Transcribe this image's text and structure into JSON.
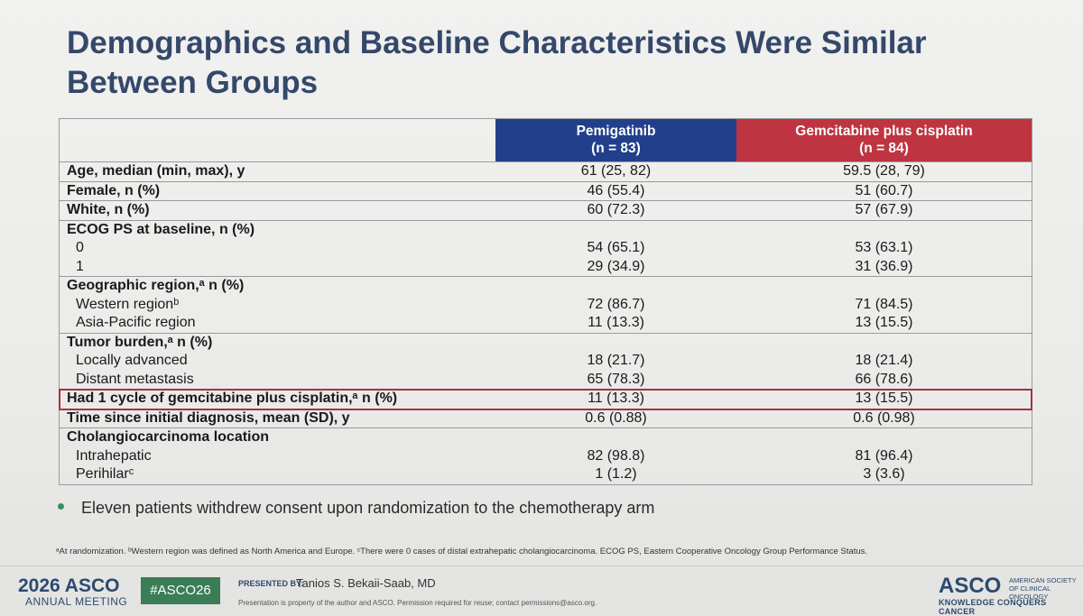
{
  "title": "Demographics and Baseline Characteristics Were Similar Between Groups",
  "table": {
    "columns": [
      {
        "name": "Pemigatinib",
        "n": "(n = 83)",
        "color": "#223f8c"
      },
      {
        "name": "Gemcitabine plus cisplatin",
        "n": "(n = 84)",
        "color": "#be3440"
      }
    ],
    "groups": [
      {
        "label": "Age, median (min, max), y",
        "values": [
          "61 (25, 82)",
          "59.5 (28, 79)"
        ]
      },
      {
        "label": "Female, n (%)",
        "values": [
          "46 (55.4)",
          "51 (60.7)"
        ]
      },
      {
        "label": "White, n (%)",
        "values": [
          "60 (72.3)",
          "57 (67.9)"
        ]
      },
      {
        "label": "ECOG PS at baseline, n (%)",
        "rows": [
          {
            "label": "0",
            "values": [
              "54 (65.1)",
              "53 (63.1)"
            ]
          },
          {
            "label": "1",
            "values": [
              "29 (34.9)",
              "31 (36.9)"
            ]
          }
        ]
      },
      {
        "label": "Geographic region,ᵃ n (%)",
        "rows": [
          {
            "label": "Western regionᵇ",
            "values": [
              "72 (86.7)",
              "71 (84.5)"
            ]
          },
          {
            "label": "Asia-Pacific region",
            "values": [
              "11 (13.3)",
              "13 (15.5)"
            ]
          }
        ]
      },
      {
        "label": "Tumor burden,ᵃ n (%)",
        "rows": [
          {
            "label": "Locally advanced",
            "values": [
              "18 (21.7)",
              "18 (21.4)"
            ]
          },
          {
            "label": "Distant metastasis",
            "values": [
              "65 (78.3)",
              "66 (78.6)"
            ]
          }
        ]
      },
      {
        "label": "Had 1 cycle of gemcitabine plus cisplatin,ᵃ n (%)",
        "values": [
          "11 (13.3)",
          "13 (15.5)"
        ],
        "highlighted": true
      },
      {
        "label": "Time since initial diagnosis, mean (SD), y",
        "values": [
          "0.6 (0.88)",
          "0.6 (0.98)"
        ]
      },
      {
        "label": "Cholangiocarcinoma location",
        "rows": [
          {
            "label": "Intrahepatic",
            "values": [
              "82 (98.8)",
              "81 (96.4)"
            ]
          },
          {
            "label": "Perihilarᶜ",
            "values": [
              "1 (1.2)",
              "3 (3.6)"
            ]
          }
        ]
      }
    ]
  },
  "bullet": "Eleven patients withdrew consent upon randomization to the chemotherapy arm",
  "footnote": "ᵃAt randomization. ᵇWestern region was defined as North America and Europe. ᶜThere were 0 cases of distal extrahepatic cholangiocarcinoma. ECOG PS, Eastern Cooperative Oncology Group Performance Status.",
  "footer": {
    "meeting_logo": "2026 ASCO",
    "meeting_sub": "ANNUAL MEETING",
    "hashtag": "#ASCO26",
    "presented_by_label": "PRESENTED BY:",
    "presenter": "Tanios S. Bekaii-Saab, MD",
    "property_note": "Presentation is property of the author and ASCO. Permission required for reuse; contact permissions@asco.org.",
    "org_logo": "ASCO",
    "org_name": "AMERICAN SOCIETY OF CLINICAL ONCOLOGY",
    "tagline": "KNOWLEDGE CONQUERS CANCER"
  }
}
